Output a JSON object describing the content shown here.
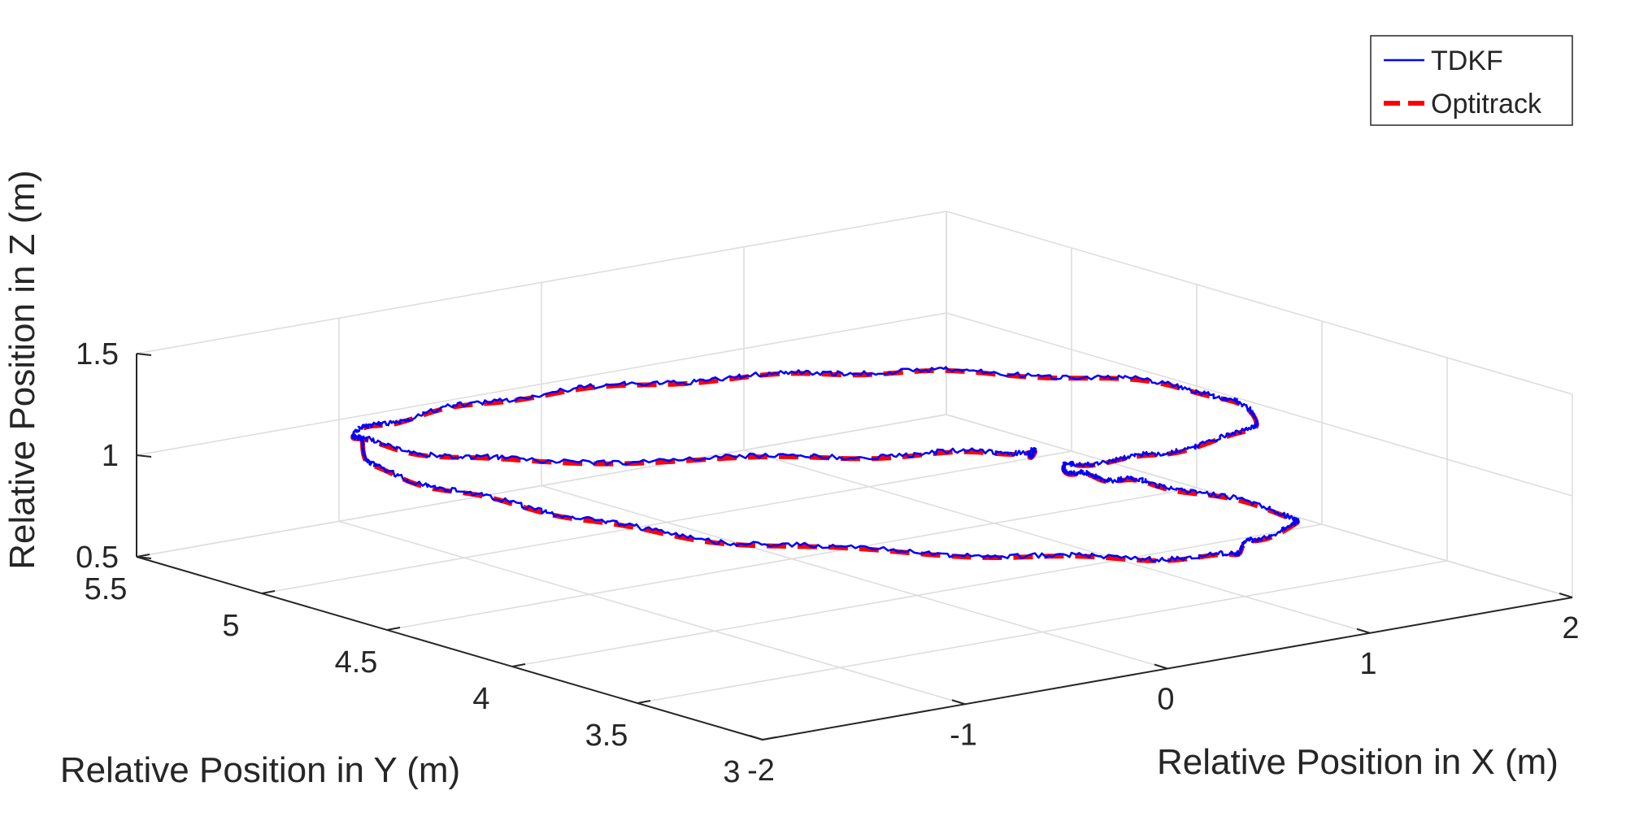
{
  "chart_data": {
    "type": "line3d",
    "title": "",
    "xlabel": "Relative Position in X (m)",
    "ylabel": "Relative Position in Y (m)",
    "zlabel": "Relative Position in Z (m)",
    "xlim": [
      -2,
      2
    ],
    "ylim": [
      3,
      5.5
    ],
    "zlim": [
      0.5,
      1.5
    ],
    "x_ticks": [
      -2,
      -1,
      0,
      1,
      2
    ],
    "y_ticks": [
      3,
      3.5,
      4,
      4.5,
      5,
      5.5
    ],
    "z_ticks": [
      0.5,
      1,
      1.5
    ],
    "x_tick_labels": [
      "-2",
      "-1",
      "0",
      "1",
      "2"
    ],
    "y_tick_labels": [
      "3",
      "3.5",
      "4",
      "4.5",
      "5",
      "5.5"
    ],
    "z_tick_labels": [
      "0.5",
      "1",
      "1.5"
    ],
    "grid": true,
    "legend_position": "top-right",
    "path_nodes": [
      [
        0.78,
        4.18,
        0.99
      ],
      [
        0.8,
        4.25,
        0.98
      ],
      [
        0.2,
        4.5,
        0.97
      ],
      [
        -0.9,
        4.9,
        1.0
      ],
      [
        -1.2,
        5.25,
        1.03
      ],
      [
        -1.0,
        5.3,
        1.06
      ],
      [
        -0.3,
        5.3,
        1.07
      ],
      [
        0.6,
        5.15,
        1.06
      ],
      [
        1.3,
        4.9,
        1.05
      ],
      [
        1.9,
        4.5,
        1.02
      ],
      [
        1.8,
        4.1,
        1.0
      ],
      [
        1.2,
        4.0,
        0.99
      ],
      [
        0.8,
        4.05,
        0.98
      ],
      [
        0.75,
        3.9,
        0.99
      ],
      [
        0.85,
        3.7,
        1.0
      ],
      [
        1.0,
        3.3,
        0.96
      ],
      [
        0.65,
        3.2,
        0.94
      ],
      [
        0.4,
        3.15,
        0.93
      ],
      [
        -0.2,
        3.45,
        0.93
      ],
      [
        -1.0,
        4.0,
        0.95
      ],
      [
        -1.3,
        4.55,
        0.98
      ],
      [
        -1.4,
        5.0,
        1.0
      ],
      [
        -1.2,
        5.25,
        1.03
      ]
    ],
    "series": [
      {
        "name": "TDKF",
        "color": "#0000ff",
        "style": "solid"
      },
      {
        "name": "Optitrack",
        "color": "#ff0000",
        "style": "dashed"
      }
    ]
  }
}
